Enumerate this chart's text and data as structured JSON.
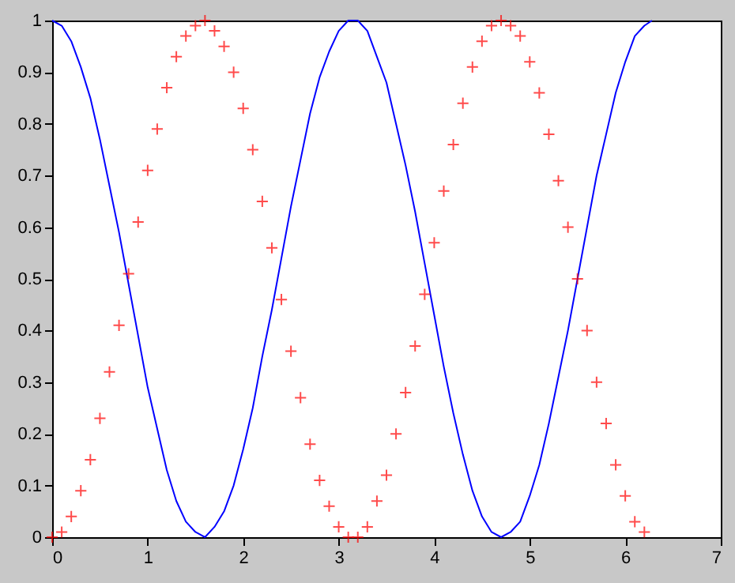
{
  "chart_data": {
    "type": "line",
    "xlim": [
      0,
      7
    ],
    "xticks": [
      0,
      1,
      2,
      3,
      4,
      5,
      6,
      7
    ],
    "ylim": [
      0,
      1
    ],
    "yticks": [
      0,
      0.1,
      0.2,
      0.3,
      0.4,
      0.5,
      0.6,
      0.7,
      0.8,
      0.9,
      1
    ],
    "grid": false,
    "series": [
      {
        "color": "#0000ff",
        "marker": "none",
        "line_style": "solid",
        "x": [
          0,
          0.1,
          0.2,
          0.3,
          0.4,
          0.5,
          0.6,
          0.7,
          0.8,
          0.9,
          1.0,
          1.1,
          1.2,
          1.3,
          1.4,
          1.5,
          1.6,
          1.7,
          1.8,
          1.9,
          2.0,
          2.1,
          2.2,
          2.3,
          2.4,
          2.5,
          2.6,
          2.7,
          2.8,
          2.9,
          3.0,
          3.1,
          3.2,
          3.3,
          3.4,
          3.5,
          3.6,
          3.7,
          3.8,
          3.9,
          4.0,
          4.1,
          4.2,
          4.3,
          4.4,
          4.5,
          4.6,
          4.7,
          4.8,
          4.9,
          5.0,
          5.1,
          5.2,
          5.3,
          5.4,
          5.5,
          5.6,
          5.7,
          5.8,
          5.9,
          6.0,
          6.1,
          6.2,
          6.28
        ],
        "values": [
          1,
          0.99,
          0.96,
          0.91,
          0.85,
          0.77,
          0.68,
          0.59,
          0.49,
          0.39,
          0.29,
          0.21,
          0.13,
          0.07,
          0.03,
          0.01,
          0,
          0.02,
          0.05,
          0.1,
          0.17,
          0.25,
          0.35,
          0.44,
          0.54,
          0.64,
          0.73,
          0.82,
          0.89,
          0.94,
          0.98,
          1,
          1,
          0.98,
          0.93,
          0.88,
          0.8,
          0.72,
          0.63,
          0.53,
          0.43,
          0.33,
          0.24,
          0.16,
          0.09,
          0.04,
          0.01,
          0,
          0.01,
          0.03,
          0.08,
          0.14,
          0.22,
          0.31,
          0.4,
          0.5,
          0.6,
          0.7,
          0.78,
          0.86,
          0.92,
          0.97,
          0.99,
          1
        ]
      },
      {
        "type": "scatter",
        "color": "#ff0000",
        "marker": "cross",
        "x": [
          0,
          0.1,
          0.2,
          0.3,
          0.4,
          0.5,
          0.6,
          0.7,
          0.8,
          0.9,
          1.0,
          1.1,
          1.2,
          1.3,
          1.4,
          1.5,
          1.6,
          1.7,
          1.8,
          1.9,
          2.0,
          2.1,
          2.2,
          2.3,
          2.4,
          2.5,
          2.6,
          2.7,
          2.8,
          2.9,
          3.0,
          3.1,
          3.2,
          3.3,
          3.4,
          3.5,
          3.6,
          3.7,
          3.8,
          3.9,
          4.0,
          4.1,
          4.2,
          4.3,
          4.4,
          4.5,
          4.6,
          4.7,
          4.8,
          4.9,
          5.0,
          5.1,
          5.2,
          5.3,
          5.4,
          5.5,
          5.6,
          5.7,
          5.8,
          5.9,
          6.0,
          6.1,
          6.2
        ],
        "values": [
          0,
          0.01,
          0.04,
          0.09,
          0.15,
          0.23,
          0.32,
          0.41,
          0.51,
          0.61,
          0.71,
          0.79,
          0.87,
          0.93,
          0.97,
          0.99,
          1,
          0.98,
          0.95,
          0.9,
          0.83,
          0.75,
          0.65,
          0.56,
          0.46,
          0.36,
          0.27,
          0.18,
          0.11,
          0.06,
          0.02,
          0,
          0,
          0.02,
          0.07,
          0.12,
          0.2,
          0.28,
          0.37,
          0.47,
          0.57,
          0.67,
          0.76,
          0.84,
          0.91,
          0.96,
          0.99,
          1,
          0.99,
          0.97,
          0.92,
          0.86,
          0.78,
          0.69,
          0.6,
          0.5,
          0.4,
          0.3,
          0.22,
          0.14,
          0.08,
          0.03,
          0.01
        ]
      }
    ]
  }
}
